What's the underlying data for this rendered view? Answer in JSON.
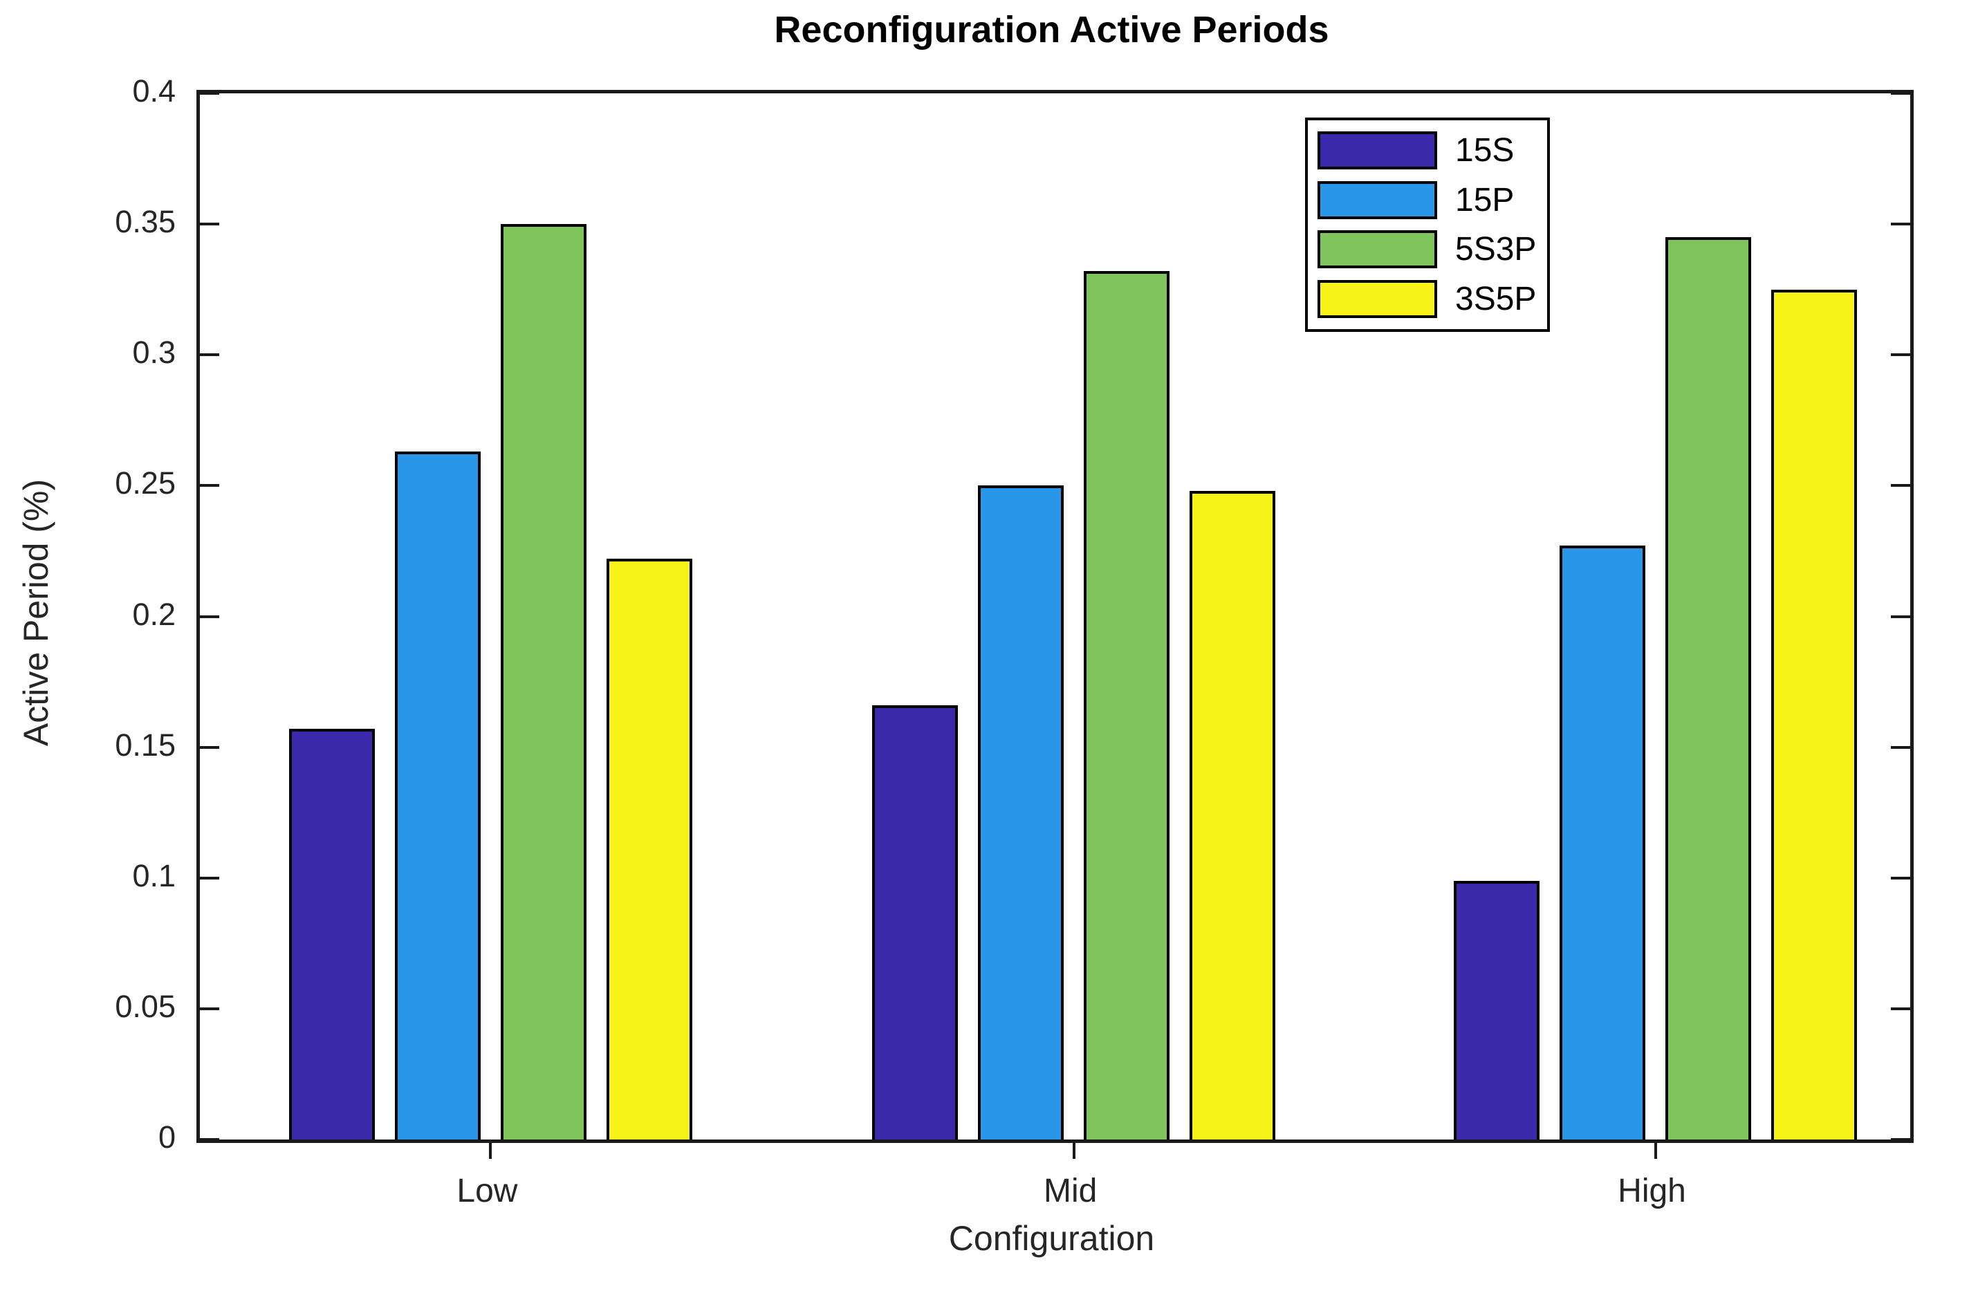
{
  "chart_data": {
    "type": "bar",
    "title": "Reconfiguration Active Periods",
    "xlabel": "Configuration",
    "ylabel": "Active Period (%)",
    "categories": [
      "Low",
      "Mid",
      "High"
    ],
    "series": [
      {
        "name": "15S",
        "color": "#3C28AA",
        "values": [
          0.157,
          0.166,
          0.099
        ]
      },
      {
        "name": "15P",
        "color": "#2A96E8",
        "values": [
          0.263,
          0.25,
          0.227
        ]
      },
      {
        "name": "5S3P",
        "color": "#7EC45A",
        "values": [
          0.35,
          0.332,
          0.345
        ]
      },
      {
        "name": "3S5P",
        "color": "#F7F217",
        "values": [
          0.222,
          0.248,
          0.325
        ]
      }
    ],
    "ylim": [
      0,
      0.4
    ],
    "ytick_step": 0.05,
    "ytick_labels": [
      "0",
      "0.05",
      "0.1",
      "0.15",
      "0.2",
      "0.25",
      "0.3",
      "0.35",
      "0.4"
    ],
    "grid": false,
    "legend_position": "upper center-right inside plot",
    "bar_edge_color": "#000000",
    "axis_color": "#1a1a1a",
    "tick_label_color": "#262626"
  }
}
